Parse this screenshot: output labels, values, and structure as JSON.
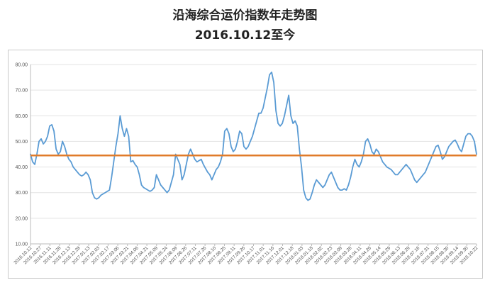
{
  "title": "沿海综合运价指数年走势图",
  "subtitle": "2016.10.12至今",
  "colors": {
    "series": "#5a9bd4",
    "reference": "#e07b2a",
    "grid": "#e3e3e3",
    "axis": "#bbbbbb"
  },
  "chart_data": {
    "type": "line",
    "ylim": [
      10,
      80
    ],
    "y_ticks": [
      "10.00",
      "20.00",
      "30.00",
      "40.00",
      "50.00",
      "60.00",
      "70.00",
      "80.00"
    ],
    "grid": true,
    "x_tick_labels": [
      "2016.10.12",
      "2016.10.27",
      "2016.11.11",
      "2016.11.28",
      "2016.12.13",
      "2016.12.28",
      "2017.01.13",
      "2017.02.03",
      "2017.02.17",
      "2017.03.06",
      "2017.03.21",
      "2017.04.06",
      "2017.04.21",
      "2017.05.09",
      "2017.05.24",
      "2017.06.09",
      "2017.06.26",
      "2017.07.11",
      "2017.07.26",
      "2017.08.10",
      "2017.08.25",
      "2017.09.11",
      "2017.09.26",
      "2017.10.17",
      "2017.11.01",
      "2017.11.16",
      "2017.12.01",
      "2017.12.18",
      "2018.01.03",
      "2018.01.18",
      "2018.02.02",
      "2018.02.23",
      "2018.03.09",
      "2018.03.26",
      "2018.04.11",
      "2018.04.26",
      "2018.05.14",
      "2018.05.29",
      "2018.06.13",
      "2018.06.29",
      "2018.07.16",
      "2018.07.31",
      "2018.08.15",
      "2018.08.30",
      "2018.09.14",
      "2018.09.30",
      "2018.10.22"
    ],
    "reference_line": {
      "value": 44.5
    },
    "series": [
      {
        "values": [
          45,
          42,
          41,
          45,
          50,
          51,
          49,
          50,
          52,
          56,
          56.5,
          54,
          47,
          45,
          46,
          50,
          48,
          45,
          43,
          42,
          40,
          39,
          38,
          37,
          36.5,
          37,
          38,
          37,
          35,
          30,
          28,
          27.5,
          28,
          29,
          29.5,
          30,
          30.5,
          31,
          36,
          42,
          48,
          53,
          60,
          55,
          52,
          55,
          52,
          42,
          42.5,
          41,
          40,
          37,
          33,
          32,
          31.5,
          31,
          30.5,
          31,
          32,
          37,
          35,
          33,
          32,
          31,
          30,
          31,
          34,
          37,
          45,
          43,
          41,
          35,
          37,
          41,
          45,
          47,
          45,
          43,
          42,
          42.5,
          43,
          41,
          39.5,
          38,
          37,
          35,
          37,
          39,
          40,
          42,
          45,
          54,
          55,
          53,
          48,
          46,
          47,
          50,
          54,
          53,
          48,
          47,
          48,
          50,
          52,
          55,
          58,
          61,
          61,
          63,
          67,
          71,
          76,
          77,
          73,
          62,
          57,
          56,
          57,
          60,
          64,
          68,
          60,
          57,
          58,
          56,
          47,
          40,
          31,
          28,
          27,
          27.5,
          30,
          33,
          35,
          34,
          33,
          32,
          33,
          35,
          37,
          38,
          36,
          34,
          32,
          31,
          31,
          31.5,
          31,
          33,
          36,
          40,
          43,
          41,
          40,
          42,
          45,
          50,
          51,
          49,
          46,
          45,
          47,
          46,
          44,
          42,
          41,
          40,
          39.5,
          39,
          38,
          37,
          37,
          38,
          39,
          40,
          41,
          40,
          39,
          37,
          35,
          34,
          35,
          36,
          37,
          38,
          40,
          42,
          44,
          46,
          48,
          48.5,
          46,
          43,
          44,
          46,
          48,
          49,
          50,
          50.5,
          49,
          47,
          46,
          49,
          52,
          53,
          53,
          52,
          50,
          45
        ]
      }
    ]
  }
}
